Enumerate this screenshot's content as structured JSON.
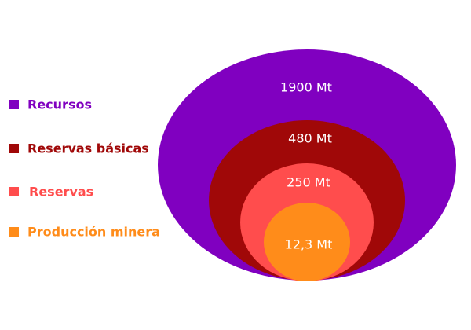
{
  "legend": [
    {
      "label": "Recursos"
    },
    {
      "label": "Reservas básicas"
    },
    {
      "label": "Reservas"
    },
    {
      "label": "Producción minera"
    }
  ],
  "ellipses": [
    {
      "label": "1900 Mt"
    },
    {
      "label": "480 Mt"
    },
    {
      "label": "250 Mt"
    },
    {
      "label": "12,3 Mt"
    }
  ]
}
